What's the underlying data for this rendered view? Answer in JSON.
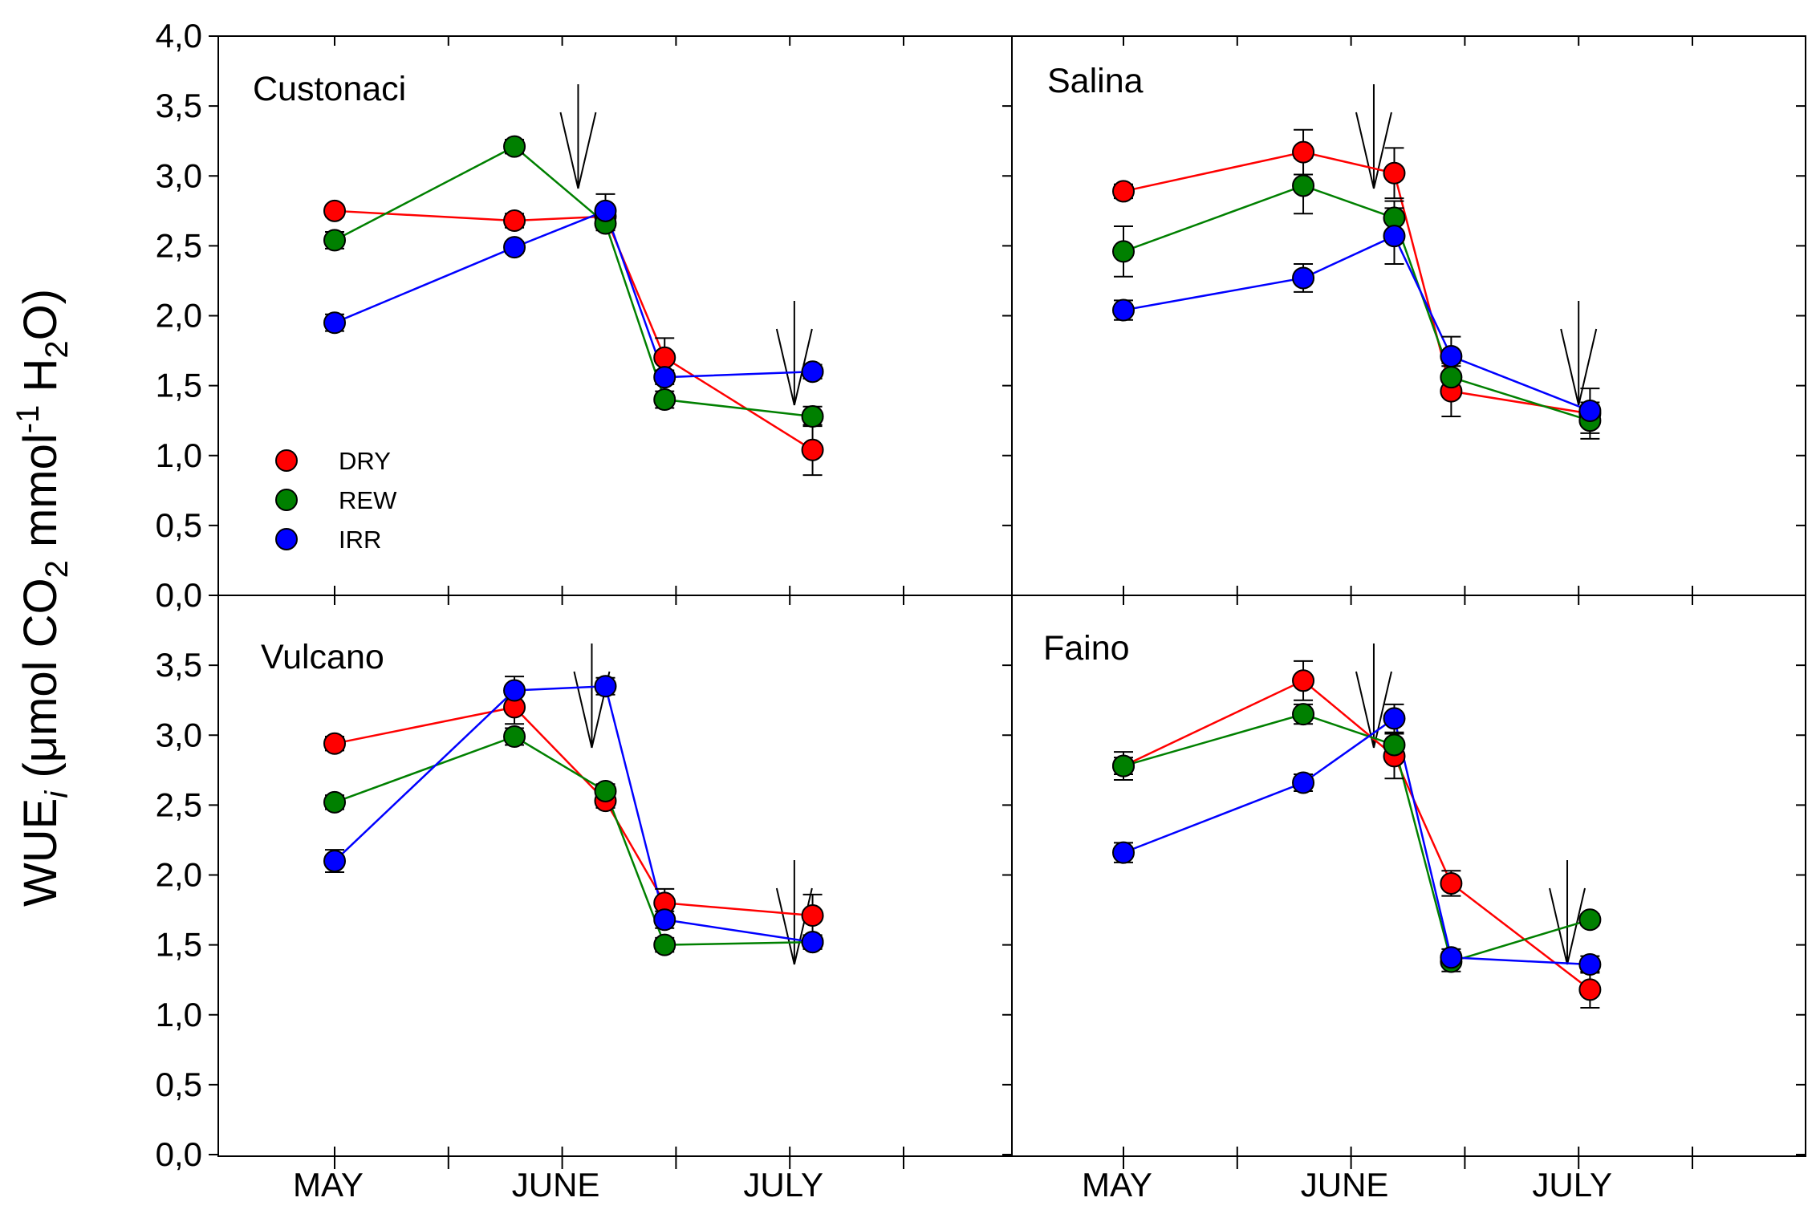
{
  "chart_data": {
    "type": "scatter",
    "ylabel_parts": {
      "main": "WUE",
      "sub_i": "i",
      "open": " (μmol CO",
      "sub2a": "2",
      "mid": " mmol",
      "sup": "-1",
      "h": " H",
      "sub2b": "2",
      "close": "O)"
    },
    "ylim": [
      0,
      4
    ],
    "yticks_top": [
      "4,0",
      "3,5",
      "3,0",
      "2,5",
      "2,0",
      "1,5",
      "1,0",
      "0,5",
      "0,0"
    ],
    "yticks_bottom": [
      "3,5",
      "3,0",
      "2,5",
      "2,0",
      "1,5",
      "1,0",
      "0,5",
      "0,0"
    ],
    "month_labels": [
      "MAY",
      "JUNE",
      "JULY"
    ],
    "legend": [
      {
        "name": "DRY",
        "color": "#ff0000"
      },
      {
        "name": "REW",
        "color": "#008000"
      },
      {
        "name": "IRR",
        "color": "#0000ff"
      }
    ],
    "colors": {
      "DRY": "#ff0000",
      "REW": "#008000",
      "IRR": "#0000ff"
    },
    "panels": [
      {
        "title": "Custonaci",
        "arrows": [
          2.14,
          4.04
        ],
        "series": [
          {
            "name": "DRY",
            "x": [
              0,
              1.58,
              2.38,
              2.9,
              4.2
            ],
            "y": [
              2.75,
              2.68,
              2.71,
              1.7,
              1.04
            ],
            "err": [
              0.04,
              0.05,
              0.06,
              0.14,
              0.18
            ]
          },
          {
            "name": "REW",
            "x": [
              0,
              1.58,
              2.38,
              2.9,
              4.2
            ],
            "y": [
              2.54,
              3.21,
              2.66,
              1.4,
              1.28
            ],
            "err": [
              0.06,
              0.05,
              0.05,
              0.06,
              0.07
            ]
          },
          {
            "name": "IRR",
            "x": [
              0,
              1.58,
              2.38,
              2.9,
              4.2
            ],
            "y": [
              1.95,
              2.49,
              2.75,
              1.56,
              1.6
            ],
            "err": [
              0.06,
              0.04,
              0.12,
              0.05,
              0.05
            ]
          }
        ]
      },
      {
        "title": "Salina",
        "arrows": [
          2.2,
          4.0
        ],
        "series": [
          {
            "name": "DRY",
            "x": [
              0,
              1.58,
              2.38,
              2.88,
              4.1
            ],
            "y": [
              2.89,
              3.17,
              3.02,
              1.46,
              1.3
            ],
            "err": [
              0.05,
              0.16,
              0.18,
              0.18,
              0.06
            ]
          },
          {
            "name": "REW",
            "x": [
              0,
              1.58,
              2.38,
              2.88,
              4.1
            ],
            "y": [
              2.46,
              2.93,
              2.7,
              1.56,
              1.25
            ],
            "err": [
              0.18,
              0.2,
              0.12,
              0.1,
              0.13
            ]
          },
          {
            "name": "IRR",
            "x": [
              0,
              1.58,
              2.38,
              2.88,
              4.1
            ],
            "y": [
              2.04,
              2.27,
              2.57,
              1.71,
              1.32
            ],
            "err": [
              0.07,
              0.1,
              0.2,
              0.14,
              0.16
            ]
          }
        ]
      },
      {
        "title": "Vulcano",
        "arrows": [
          2.26,
          4.04
        ],
        "series": [
          {
            "name": "DRY",
            "x": [
              0,
              1.58,
              2.38,
              2.9,
              4.2
            ],
            "y": [
              2.94,
              3.2,
              2.53,
              1.8,
              1.71
            ],
            "err": [
              0.05,
              0.12,
              0.05,
              0.1,
              0.15
            ]
          },
          {
            "name": "REW",
            "x": [
              0,
              1.58,
              2.38,
              2.9,
              4.2
            ],
            "y": [
              2.52,
              2.99,
              2.6,
              1.5,
              1.52
            ],
            "err": [
              0.05,
              0.06,
              0.05,
              0.05,
              0.04
            ]
          },
          {
            "name": "IRR",
            "x": [
              0,
              1.58,
              2.38,
              2.9,
              4.2
            ],
            "y": [
              2.1,
              3.32,
              3.35,
              1.68,
              1.52
            ],
            "err": [
              0.08,
              0.1,
              0.06,
              0.06,
              0.05
            ]
          }
        ]
      },
      {
        "title": "Faino",
        "arrows": [
          2.2,
          3.9
        ],
        "series": [
          {
            "name": "DRY",
            "x": [
              0,
              1.58,
              2.38,
              2.88,
              4.1
            ],
            "y": [
              2.78,
              3.39,
              2.85,
              1.94,
              1.18
            ],
            "err": [
              0.1,
              0.14,
              0.16,
              0.09,
              0.13
            ]
          },
          {
            "name": "REW",
            "x": [
              0,
              1.58,
              2.38,
              2.88,
              4.1
            ],
            "y": [
              2.78,
              3.15,
              2.93,
              1.38,
              1.68
            ],
            "err": [
              0.06,
              0.07,
              0.08,
              0.07,
              0.04
            ]
          },
          {
            "name": "IRR",
            "x": [
              0,
              1.58,
              2.38,
              2.88,
              4.1
            ],
            "y": [
              2.16,
              2.66,
              3.12,
              1.41,
              1.36
            ],
            "err": [
              0.07,
              0.06,
              0.1,
              0.06,
              0.06
            ]
          }
        ]
      }
    ]
  }
}
